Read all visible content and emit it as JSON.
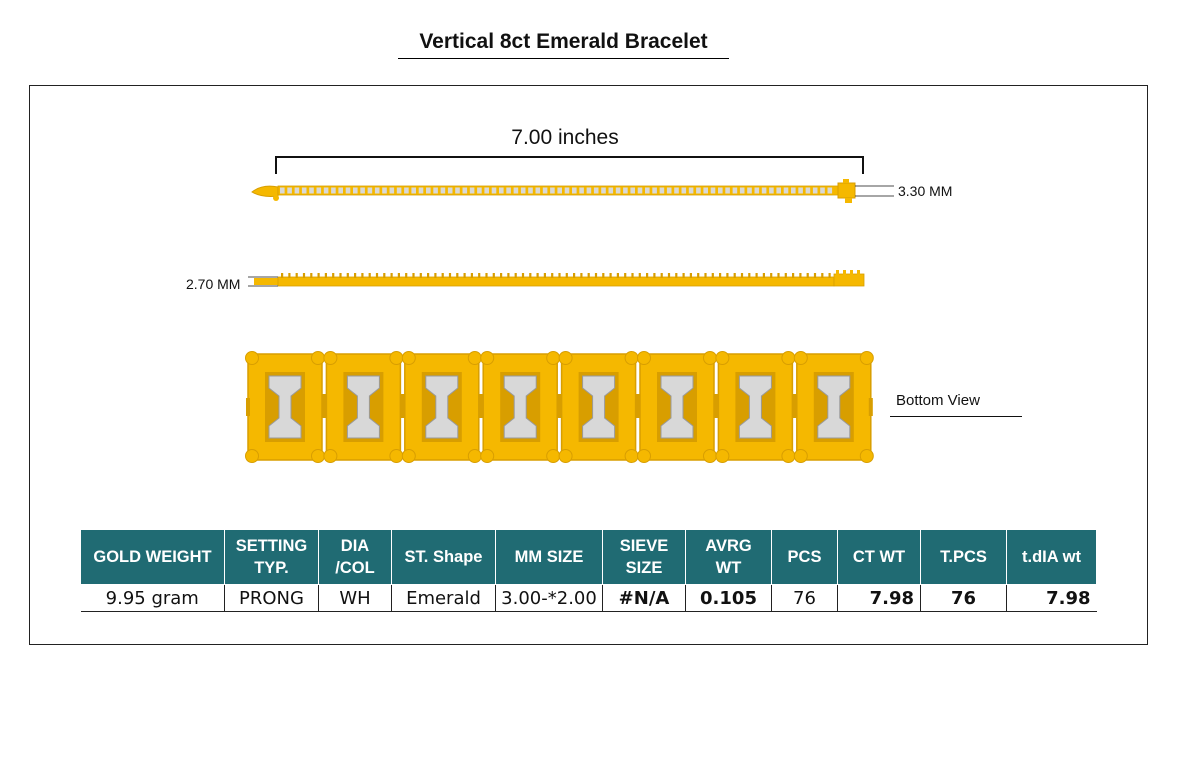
{
  "title": "Vertical 8ct Emerald Bracelet",
  "drawing": {
    "length_label": "7.00 inches",
    "width_label": "3.30 MM",
    "height_label": "2.70 MM",
    "bottom_view_label": "Bottom View",
    "bottom_view_links": 8,
    "colors": {
      "gold": "#f5b800",
      "gold_dark": "#d89e00",
      "stone": "#d8d8d8",
      "header": "#206b73"
    }
  },
  "spec_table": {
    "headers": [
      [
        "GOLD WEIGHT"
      ],
      [
        "SETTING",
        "TYP."
      ],
      [
        "DIA",
        "/COL"
      ],
      [
        "ST. Shape"
      ],
      [
        "MM SIZE"
      ],
      [
        "SIEVE",
        "SIZE"
      ],
      [
        "AVRG",
        "WT"
      ],
      [
        "PCS"
      ],
      [
        "CT WT"
      ],
      [
        "T.PCS"
      ],
      [
        "t.dIA wt"
      ]
    ],
    "row": [
      "9.95 gram",
      "PRONG",
      "WH",
      "Emerald",
      "3.00-*2.00",
      "#N/A",
      "0.105",
      "76",
      "7.98",
      "76",
      "7.98"
    ]
  }
}
